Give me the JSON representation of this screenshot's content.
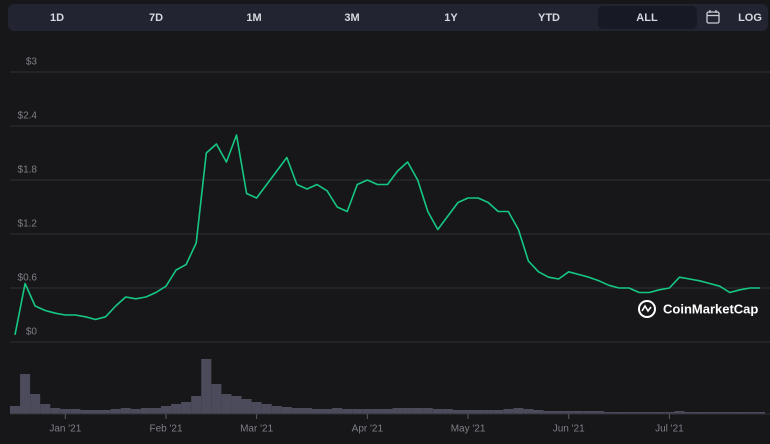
{
  "controls": [
    "1D",
    "7D",
    "1M",
    "3M",
    "1Y",
    "YTD",
    "ALL",
    "LOG"
  ],
  "active_control": 6,
  "watermark": "CoinMarketCap",
  "chart_data": {
    "type": "line",
    "categories": [
      null,
      null,
      null,
      null,
      null,
      "Jan '21",
      null,
      null,
      null,
      null,
      null,
      null,
      null,
      null,
      null,
      "Feb '21",
      null,
      null,
      null,
      null,
      null,
      null,
      null,
      null,
      "Mar '21",
      null,
      null,
      null,
      null,
      null,
      null,
      null,
      null,
      null,
      null,
      "Apr '21",
      null,
      null,
      null,
      null,
      null,
      null,
      null,
      null,
      null,
      "May '21",
      null,
      null,
      null,
      null,
      null,
      null,
      null,
      null,
      null,
      "Jun '21",
      null,
      null,
      null,
      null,
      null,
      null,
      null,
      null,
      null,
      "Jul '21",
      null,
      null,
      null,
      null,
      null,
      null,
      null,
      null,
      null
    ],
    "series": [
      {
        "color": "#16c784",
        "values": [
          0.08,
          0.65,
          0.4,
          0.35,
          0.32,
          0.3,
          0.3,
          0.28,
          0.25,
          0.28,
          0.4,
          0.5,
          0.48,
          0.5,
          0.55,
          0.62,
          0.8,
          0.86,
          1.1,
          2.1,
          2.2,
          2.0,
          2.3,
          1.65,
          1.6,
          1.75,
          1.9,
          2.05,
          1.75,
          1.7,
          1.75,
          1.68,
          1.5,
          1.45,
          1.75,
          1.8,
          1.75,
          1.75,
          1.9,
          2.0,
          1.8,
          1.45,
          1.25,
          1.4,
          1.55,
          1.6,
          1.6,
          1.55,
          1.45,
          1.45,
          1.25,
          0.9,
          0.78,
          0.72,
          0.7,
          0.78,
          0.75,
          0.72,
          0.68,
          0.63,
          0.6,
          0.6,
          0.55,
          0.55,
          0.58,
          0.6,
          0.72,
          0.7,
          0.68,
          0.65,
          0.62,
          0.55,
          0.58,
          0.6,
          0.6
        ]
      },
      {
        "color": "#4b4b5c",
        "axis": "y2",
        "values": [
          8,
          40,
          20,
          10,
          6,
          5,
          5,
          4,
          4,
          4,
          5,
          6,
          5,
          6,
          6,
          8,
          10,
          12,
          18,
          55,
          30,
          20,
          18,
          15,
          12,
          10,
          8,
          7,
          6,
          6,
          5,
          5,
          6,
          5,
          5,
          5,
          5,
          5,
          6,
          6,
          6,
          6,
          5,
          5,
          4,
          4,
          4,
          4,
          4,
          5,
          6,
          5,
          4,
          3,
          3,
          3,
          3,
          3,
          3,
          2,
          2,
          2,
          2,
          2,
          2,
          2,
          3,
          2,
          2,
          2,
          2,
          2,
          2,
          2,
          2
        ]
      }
    ],
    "ylim": [
      0,
      3
    ],
    "yticks": [
      {
        "value": 0,
        "label": "$0"
      },
      {
        "value": 0.6,
        "label": "$0.6"
      },
      {
        "value": 1.2,
        "label": "$1.2"
      },
      {
        "value": 1.8,
        "label": "$1.8"
      },
      {
        "value": 2.4,
        "label": "$2.4"
      },
      {
        "value": 3,
        "label": "$3"
      }
    ],
    "y2lim": [
      0,
      60
    ],
    "grid": true
  }
}
